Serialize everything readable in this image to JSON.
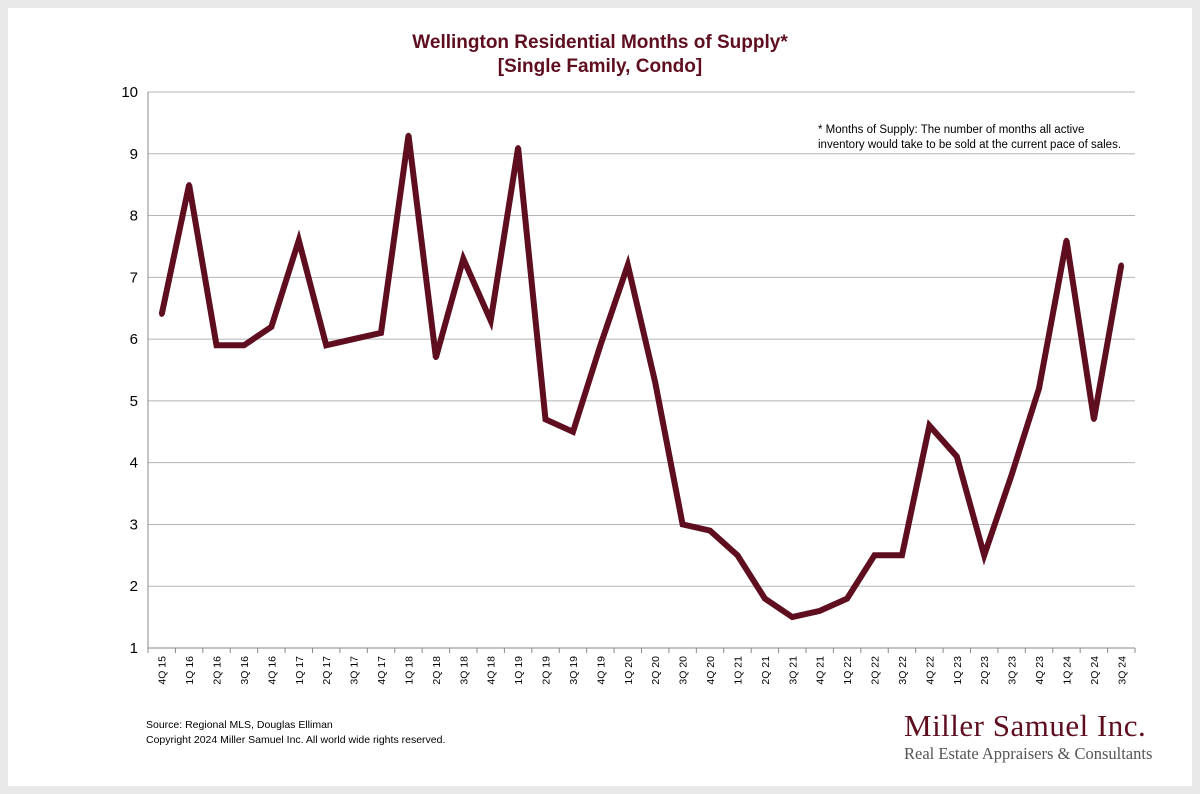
{
  "chart_data": {
    "type": "line",
    "title": "Wellington Residential Months of Supply*",
    "subtitle": "[Single Family, Condo]",
    "xlabel": "",
    "ylabel": "",
    "ylim": [
      1,
      10
    ],
    "yticks": [
      "1",
      "2",
      "3",
      "4",
      "5",
      "6",
      "7",
      "8",
      "9",
      "10"
    ],
    "grid": true,
    "categories": [
      "4Q 15",
      "1Q 16",
      "2Q 16",
      "3Q 16",
      "4Q 16",
      "1Q 17",
      "2Q 17",
      "3Q 17",
      "4Q 17",
      "1Q 18",
      "2Q 18",
      "3Q 18",
      "4Q 18",
      "1Q 19",
      "2Q 19",
      "3Q 19",
      "4Q 19",
      "1Q 20",
      "2Q 20",
      "3Q 20",
      "4Q 20",
      "1Q 21",
      "2Q 21",
      "3Q 21",
      "4Q 21",
      "1Q 22",
      "2Q 22",
      "3Q 22",
      "4Q 22",
      "1Q 23",
      "2Q 23",
      "3Q 23",
      "4Q 23",
      "1Q 24",
      "2Q 24",
      "3Q 24"
    ],
    "series": [
      {
        "name": "Months of Supply",
        "color": "#5e0e1f",
        "values": [
          6.4,
          8.5,
          5.9,
          5.9,
          6.2,
          7.6,
          5.9,
          6.0,
          6.1,
          9.3,
          5.7,
          7.3,
          6.3,
          9.1,
          4.7,
          4.5,
          5.9,
          7.2,
          5.3,
          3.0,
          2.9,
          2.5,
          1.8,
          1.5,
          1.6,
          1.8,
          2.5,
          2.5,
          4.6,
          4.1,
          2.5,
          3.8,
          5.2,
          7.6,
          4.7,
          7.2
        ]
      }
    ],
    "annotation": {
      "line1": "* Months of Supply: The number of months all active",
      "line2": "inventory would take to be sold at the current pace of sales."
    }
  },
  "footer": {
    "source": "Source: Regional MLS, Douglas Elliman",
    "copyright": "Copyright 2024 Miller Samuel Inc.  All world wide rights reserved."
  },
  "logo": {
    "name": "Miller Samuel Inc.",
    "tagline": "Real Estate Appraisers & Consultants"
  }
}
